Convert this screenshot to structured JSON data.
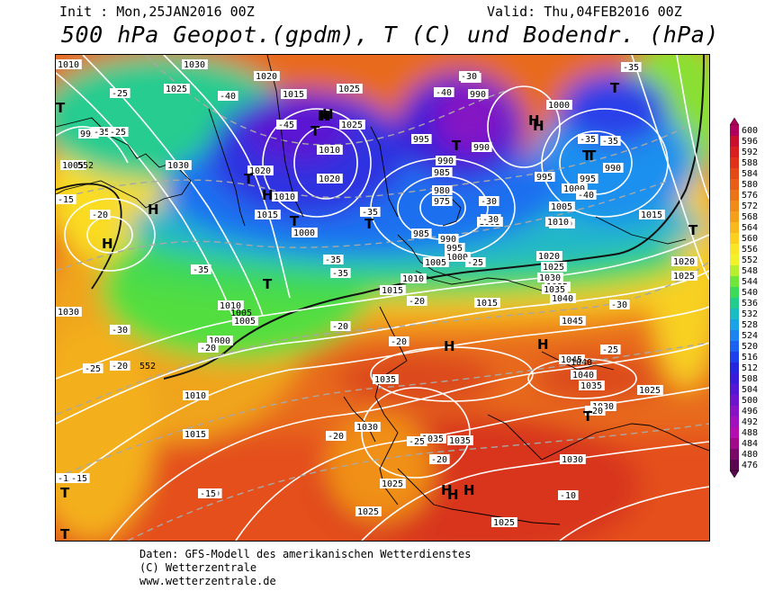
{
  "header": {
    "init": "Init : Mon,25JAN2016 00Z",
    "valid": "Valid: Thu,04FEB2016 00Z",
    "title": "500 hPa Geopot.(gpdm), T (C) und Bodendr. (hPa)"
  },
  "colorbar": {
    "levels": [
      "600",
      "596",
      "592",
      "588",
      "584",
      "580",
      "576",
      "572",
      "568",
      "564",
      "560",
      "556",
      "552",
      "548",
      "544",
      "540",
      "536",
      "532",
      "528",
      "524",
      "520",
      "516",
      "512",
      "508",
      "504",
      "500",
      "496",
      "492",
      "488",
      "484",
      "480",
      "476"
    ],
    "colors": [
      "#b0005e",
      "#c8102e",
      "#d81e1e",
      "#e0321a",
      "#e44a18",
      "#e85e18",
      "#ec7418",
      "#f08a18",
      "#f4a01c",
      "#f8b81e",
      "#fcd020",
      "#fae628",
      "#f2f22a",
      "#b8ee30",
      "#6ee63a",
      "#3cda58",
      "#22cc8c",
      "#18bcc2",
      "#1aa2e6",
      "#1c84f0",
      "#1c62f0",
      "#1e40ea",
      "#2626de",
      "#3a1cd8",
      "#5418d4",
      "#6e14cc",
      "#8812c4",
      "#a010bc",
      "#b40eb0",
      "#a00a8a",
      "#7a0868",
      "#5a0650"
    ]
  },
  "map": {
    "pressure_labels": [
      {
        "t": "1010"
      },
      {
        "t": "1030"
      },
      {
        "t": "1020"
      },
      {
        "t": "1015"
      },
      {
        "t": "1025"
      },
      {
        "t": "1025"
      },
      {
        "t": "1025"
      },
      {
        "t": "995"
      },
      {
        "t": "1005"
      },
      {
        "t": "1030"
      },
      {
        "t": "1020"
      },
      {
        "t": "1010"
      },
      {
        "t": "1015"
      },
      {
        "t": "1000"
      },
      {
        "t": "1020"
      },
      {
        "t": "1010"
      },
      {
        "t": "995"
      },
      {
        "t": "990"
      },
      {
        "t": "985"
      },
      {
        "t": "980"
      },
      {
        "t": "975"
      },
      {
        "t": "985"
      },
      {
        "t": "990"
      },
      {
        "t": "995"
      },
      {
        "t": "1000"
      },
      {
        "t": "1005"
      },
      {
        "t": "990"
      },
      {
        "t": "990"
      },
      {
        "t": "1000"
      },
      {
        "t": "995"
      },
      {
        "t": "990"
      },
      {
        "t": "995"
      },
      {
        "t": "1000"
      },
      {
        "t": "1005"
      },
      {
        "t": "1010"
      },
      {
        "t": "1015"
      },
      {
        "t": "1020"
      },
      {
        "t": "1025"
      },
      {
        "t": "1030"
      },
      {
        "t": "1035"
      },
      {
        "t": "1040"
      },
      {
        "t": "1045"
      },
      {
        "t": "1045"
      },
      {
        "t": "1040"
      },
      {
        "t": "1035"
      },
      {
        "t": "1030"
      },
      {
        "t": "1025"
      },
      {
        "t": "1035"
      },
      {
        "t": "1030"
      },
      {
        "t": "1035"
      },
      {
        "t": "1025"
      },
      {
        "t": "1025"
      },
      {
        "t": "1025"
      },
      {
        "t": "1030"
      },
      {
        "t": "1020"
      },
      {
        "t": "1025"
      },
      {
        "t": "1035"
      },
      {
        "t": "1010"
      },
      {
        "t": "1005"
      },
      {
        "t": "1000"
      },
      {
        "t": "1010"
      },
      {
        "t": "1030"
      },
      {
        "t": "1010"
      },
      {
        "t": "1015"
      },
      {
        "t": "1015"
      },
      {
        "t": "1035"
      },
      {
        "t": "1005"
      },
      {
        "t": "1010"
      },
      {
        "t": "1015"
      },
      {
        "t": "1025"
      }
    ],
    "temp_labels": [
      {
        "t": "-25"
      },
      {
        "t": "-35"
      },
      {
        "t": "-40"
      },
      {
        "t": "-45"
      },
      {
        "t": "-40"
      },
      {
        "t": "-40"
      },
      {
        "t": "-35"
      },
      {
        "t": "-40"
      },
      {
        "t": "-35"
      },
      {
        "t": "-35"
      },
      {
        "t": "-30"
      },
      {
        "t": "-25"
      },
      {
        "t": "-15"
      },
      {
        "t": "-20"
      },
      {
        "t": "-30"
      },
      {
        "t": "-20"
      },
      {
        "t": "-25"
      },
      {
        "t": "-35"
      },
      {
        "t": "-20"
      },
      {
        "t": "-20"
      },
      {
        "t": "-20"
      },
      {
        "t": "-20"
      },
      {
        "t": "-20"
      },
      {
        "t": "-15"
      },
      {
        "t": "-15"
      },
      {
        "t": "-20"
      },
      {
        "t": "-15"
      },
      {
        "t": "-10"
      },
      {
        "t": "-25"
      },
      {
        "t": "-30"
      },
      {
        "t": "-35"
      },
      {
        "t": "-30"
      },
      {
        "t": "-25"
      },
      {
        "t": "-30"
      },
      {
        "t": "-20"
      },
      {
        "t": "-25"
      },
      {
        "t": "-35"
      },
      {
        "t": "-35"
      },
      {
        "t": "-20"
      }
    ],
    "small_labels": [
      {
        "t": "552"
      },
      {
        "t": "552"
      },
      {
        "t": "1005"
      },
      {
        "t": "1040"
      }
    ],
    "highs": [
      "H",
      "H",
      "H",
      "H",
      "H",
      "H",
      "H",
      "H",
      "H",
      "H",
      "H",
      "H",
      "H"
    ],
    "lows": [
      "T",
      "T",
      "T",
      "T",
      "T",
      "T",
      "T",
      "T",
      "T",
      "T",
      "T",
      "T",
      "T",
      "T"
    ]
  },
  "footer": {
    "line1": "Daten: GFS-Modell des amerikanischen Wetterdienstes",
    "line2": "(C) Wetterzentrale",
    "line3": "www.wetterzentrale.de"
  }
}
